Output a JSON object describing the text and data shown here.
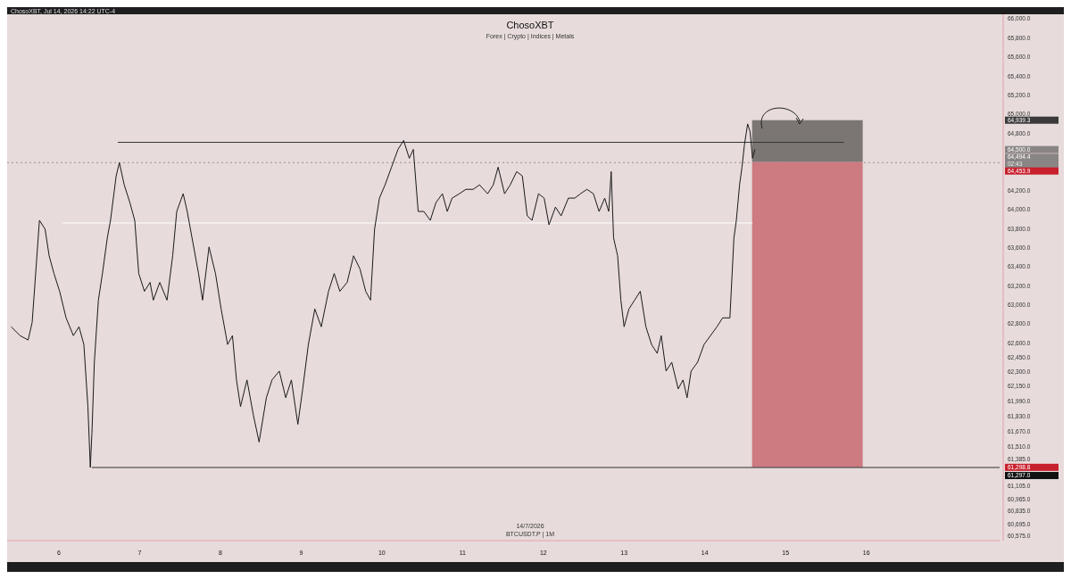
{
  "chart_data": {
    "type": "line",
    "title": "ChosoXBT",
    "subtitle": "Forex | Crypto | Indices | Metals",
    "xlim": [
      5.36,
      17.65
    ],
    "xticks": [
      6,
      7,
      8,
      9,
      10,
      11,
      12,
      13,
      14,
      15,
      16
    ],
    "ylim": [
      60530,
      66050
    ],
    "yticks": [
      {
        "value": 66000,
        "label": "66,000.0"
      },
      {
        "value": 65800,
        "label": "65,800.0"
      },
      {
        "value": 65600,
        "label": "65,600.0"
      },
      {
        "value": 65400,
        "label": "65,400.0"
      },
      {
        "value": 65200,
        "label": "65,200.0"
      },
      {
        "value": 65000,
        "label": "65,000.0"
      },
      {
        "value": 64800,
        "label": "64,800.0"
      },
      {
        "value": 64200,
        "label": "64,200.0"
      },
      {
        "value": 64000,
        "label": "64,000.0"
      },
      {
        "value": 63800,
        "label": "63,800.0"
      },
      {
        "value": 63600,
        "label": "63,600.0"
      },
      {
        "value": 63400,
        "label": "63,400.0"
      },
      {
        "value": 63200,
        "label": "63,200.0"
      },
      {
        "value": 63000,
        "label": "63,000.0"
      },
      {
        "value": 62800,
        "label": "62,800.0"
      },
      {
        "value": 62600,
        "label": "62,600.0"
      },
      {
        "value": 62450,
        "label": "62,450.0"
      },
      {
        "value": 62300,
        "label": "62,300.0"
      },
      {
        "value": 62150,
        "label": "62,150.0"
      },
      {
        "value": 61990,
        "label": "61,990.0"
      },
      {
        "value": 61830,
        "label": "61,830.0"
      },
      {
        "value": 61670,
        "label": "61,670.0"
      },
      {
        "value": 61510,
        "label": "61,510.0"
      },
      {
        "value": 61385,
        "label": "61,385.0"
      },
      {
        "value": 61105,
        "label": "61,105.0"
      },
      {
        "value": 60965,
        "label": "60,965.0"
      },
      {
        "value": 60835,
        "label": "60,835.0"
      },
      {
        "value": 60695,
        "label": "60,695.0"
      },
      {
        "value": 60575,
        "label": "60,575.0"
      }
    ],
    "series": [
      {
        "type": "bar",
        "color": "#7b7674",
        "x": [
          15.27
        ],
        "base": [
          64500
        ],
        "values": [
          439.3
        ]
      },
      {
        "type": "bar",
        "color": "#cd7a80",
        "x": [
          15.27
        ],
        "base": [
          61298.8
        ],
        "values": [
          3201.2
        ]
      },
      {
        "type": "line",
        "color": "#ffffff",
        "x": [
          6.04,
          14.59
        ],
        "values": [
          63861,
          63861
        ]
      },
      {
        "type": "line",
        "color": "#333333",
        "x": [
          6.73,
          15.72
        ],
        "values": [
          64707,
          64707
        ]
      },
      {
        "type": "line",
        "color": "#333333",
        "x": [
          6.41,
          17.65
        ],
        "values": [
          61297,
          61297
        ]
      },
      {
        "color": "#1a1a1a",
        "x": [
          5.41,
          5.52,
          5.62,
          5.67,
          5.76,
          5.83,
          5.88,
          5.94,
          6.01,
          6.09,
          6.18,
          6.25,
          6.31,
          6.36,
          6.39,
          6.41,
          6.44,
          6.49,
          6.54,
          6.6,
          6.64,
          6.71,
          6.75,
          6.81,
          6.88,
          6.94,
          6.99,
          7.06,
          7.13,
          7.17,
          7.25,
          7.34,
          7.41,
          7.46,
          7.54,
          7.59,
          7.65,
          7.73,
          7.78,
          7.86,
          7.94,
          8.01,
          8.09,
          8.15,
          8.2,
          8.25,
          8.33,
          8.41,
          8.48,
          8.57,
          8.64,
          8.73,
          8.81,
          8.88,
          8.96,
          9.02,
          9.09,
          9.17,
          9.25,
          9.34,
          9.41,
          9.48,
          9.57,
          9.65,
          9.73,
          9.8,
          9.86,
          9.91,
          9.97,
          10.04,
          10.12,
          10.2,
          10.27,
          10.34,
          10.39,
          10.45,
          10.52,
          10.6,
          10.67,
          10.75,
          10.81,
          10.87,
          10.96,
          11.04,
          11.13,
          11.21,
          11.31,
          11.38,
          11.44,
          11.52,
          11.59,
          11.67,
          11.74,
          11.8,
          11.86,
          11.94,
          12.01,
          12.07,
          12.15,
          12.22,
          12.31,
          12.39,
          12.46,
          12.54,
          12.62,
          12.69,
          12.76,
          12.81,
          12.84,
          12.87,
          12.92,
          12.96,
          13,
          13.06,
          13.13,
          13.2,
          13.27,
          13.34,
          13.41,
          13.46,
          13.52,
          13.59,
          13.67,
          13.73,
          13.78,
          13.83,
          13.91,
          13.99,
          14.07,
          14.15,
          14.22,
          14.31,
          14.36,
          14.39,
          14.43,
          14.46,
          14.49,
          14.53,
          14.56,
          14.59,
          14.62
        ],
        "values": [
          62773,
          62680,
          62634,
          62820,
          63889,
          63796,
          63517,
          63331,
          63145,
          62866,
          62680,
          62773,
          62587,
          61936,
          61297,
          61657,
          62401,
          63052,
          63331,
          63703,
          63889,
          64354,
          64494,
          64261,
          64075,
          63889,
          63331,
          63145,
          63238,
          63052,
          63238,
          63052,
          63517,
          63982,
          64168,
          63982,
          63703,
          63331,
          63052,
          63610,
          63331,
          62959,
          62587,
          62680,
          62215,
          61936,
          62215,
          61843,
          61564,
          62029,
          62215,
          62308,
          62029,
          62215,
          61750,
          62122,
          62587,
          62959,
          62773,
          63145,
          63331,
          63145,
          63238,
          63517,
          63378,
          63145,
          63052,
          63796,
          64122,
          64261,
          64447,
          64633,
          64726,
          64540,
          64633,
          63982,
          63982,
          63889,
          64075,
          64168,
          63982,
          64122,
          64168,
          64214,
          64214,
          64261,
          64168,
          64261,
          64447,
          64168,
          64261,
          64400,
          64354,
          63936,
          63889,
          64168,
          64122,
          63842,
          64028,
          63936,
          64122,
          64122,
          64168,
          64214,
          64168,
          63982,
          64122,
          63982,
          64400,
          63703,
          63517,
          63052,
          62773,
          62959,
          63052,
          63145,
          62773,
          62587,
          62494,
          62680,
          62308,
          62401,
          62122,
          62215,
          62029,
          62308,
          62401,
          62587,
          62680,
          62773,
          62866,
          62866,
          63703,
          63889,
          64261,
          64447,
          64680,
          64900,
          64819,
          64540,
          64633
        ],
        "line_style": "solid"
      }
    ],
    "ref_lines": [
      {
        "axis": "y",
        "value": 64494.4,
        "color": "#9a9090",
        "line_style": "dotted"
      }
    ],
    "annotations": [
      "ChosoXBT, Jul 14, 2026 14:22 UTC-4",
      "14/7/2026",
      "BTCUSDT.P | 1M",
      "02:43",
      "64,939.3",
      "64,500.0",
      "64,494.4",
      "64,453.9",
      "61,298.8",
      "61,297.0"
    ],
    "grid": false
  }
}
